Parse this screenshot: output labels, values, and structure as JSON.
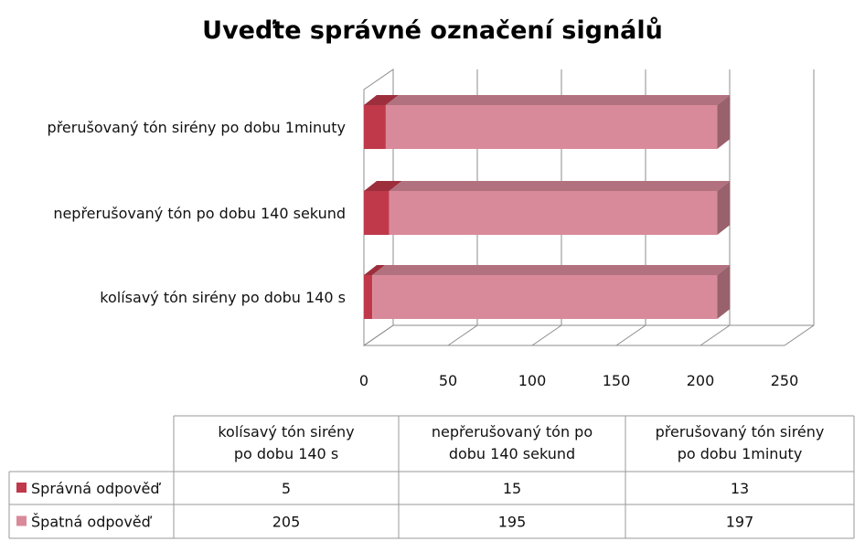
{
  "chart_data": {
    "type": "bar",
    "orientation": "horizontal",
    "stacked": true,
    "three_d": true,
    "title": "Uveďte správné označení signálů",
    "categories": [
      "kolísavý tón  sirény po dobu 140 s",
      "nepřerušovaný tón po dobu 140 sekund",
      "přerušovaný tón sirény po dobu 1minuty"
    ],
    "table_headers": [
      "kolísavý tón  sirény po dobu 140 s",
      "nepřerušovaný tón po dobu 140 sekund",
      "přerušovaný tón sirény po dobu 1minuty"
    ],
    "series": [
      {
        "name": "Správná odpověď",
        "values": [
          5,
          15,
          13
        ],
        "color": "#c0394a"
      },
      {
        "name": "Špatná odpověď",
        "values": [
          205,
          195,
          197
        ],
        "color": "#d98a9a"
      }
    ],
    "xlim": [
      0,
      250
    ],
    "xticks": [
      0,
      50,
      100,
      150,
      200,
      250
    ],
    "grid": true,
    "legend": "data-table"
  }
}
